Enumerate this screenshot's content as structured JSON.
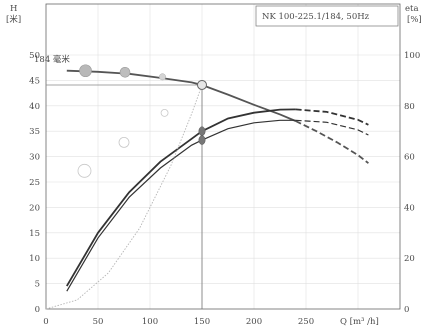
{
  "chart_data": {
    "type": "line",
    "title_box": "NK 100-225.1/184, 50Hz",
    "left_axis_label": [
      "H",
      "[米]"
    ],
    "right_axis_label": [
      "eta",
      "[%]"
    ],
    "xlabel": "Q [m³ /h]",
    "impeller_label": "184 毫米",
    "xlim": [
      0,
      300
    ],
    "ylim_head": [
      0,
      50
    ],
    "ylim_eta": [
      0,
      120
    ],
    "grid": true,
    "x_ticks": [
      "0",
      "50",
      "100",
      "150",
      "200",
      "250"
    ],
    "y_ticks_left": [
      "0",
      "5",
      "10",
      "15",
      "20",
      "25",
      "30",
      "35",
      "40",
      "45",
      "50"
    ],
    "y_ticks_right": [
      "0",
      "20",
      "40",
      "60",
      "80",
      "100"
    ],
    "operating_point": {
      "q": 150,
      "h": 44.1
    },
    "series": [
      {
        "role": "head_curve",
        "axis": "left",
        "points": [
          [
            20,
            46.9
          ],
          [
            50,
            46.7
          ],
          [
            80,
            46.3
          ],
          [
            110,
            45.5
          ],
          [
            140,
            44.6
          ],
          [
            150,
            44.1
          ],
          [
            175,
            42.2
          ],
          [
            200,
            40.2
          ],
          [
            225,
            38.3
          ],
          [
            240,
            37.0
          ]
        ],
        "dashed_points": [
          [
            240,
            37.0
          ],
          [
            260,
            35.0
          ],
          [
            280,
            32.8
          ],
          [
            300,
            30.3
          ],
          [
            310,
            28.7
          ]
        ]
      },
      {
        "role": "efficiency_curve",
        "axis": "right",
        "points": [
          [
            20,
            9
          ],
          [
            50,
            30
          ],
          [
            80,
            46
          ],
          [
            110,
            58
          ],
          [
            140,
            67
          ],
          [
            150,
            70
          ],
          [
            175,
            75
          ],
          [
            200,
            77.3
          ],
          [
            225,
            78.5
          ],
          [
            240,
            78.6
          ]
        ],
        "dashed_points": [
          [
            240,
            78.6
          ],
          [
            270,
            77.6
          ],
          [
            300,
            74.5
          ],
          [
            310,
            72.5
          ]
        ]
      },
      {
        "role": "efficiency_curve_lower",
        "axis": "right",
        "points": [
          [
            20,
            7
          ],
          [
            50,
            28
          ],
          [
            80,
            44
          ],
          [
            110,
            55.5
          ],
          [
            140,
            64.5
          ],
          [
            150,
            66.5
          ],
          [
            175,
            71
          ],
          [
            200,
            73.3
          ],
          [
            225,
            74.3
          ],
          [
            240,
            74.3
          ]
        ],
        "dashed_points": [
          [
            240,
            74.3
          ],
          [
            270,
            73.5
          ],
          [
            300,
            70.5
          ],
          [
            310,
            68.5
          ]
        ]
      },
      {
        "role": "system_curve",
        "axis": "left",
        "points": [
          [
            0,
            0
          ],
          [
            30,
            1.8
          ],
          [
            60,
            7.1
          ],
          [
            90,
            15.9
          ],
          [
            120,
            28.2
          ],
          [
            140,
            38.4
          ],
          [
            150,
            44.1
          ]
        ]
      }
    ],
    "markers": [
      {
        "q": 38,
        "h": 46.9,
        "size": "large"
      },
      {
        "q": 76,
        "h": 46.6,
        "size": "medium"
      },
      {
        "q": 112,
        "h": 45.7,
        "size": "small"
      },
      {
        "q": 150,
        "h": 44.1,
        "size": "open"
      },
      {
        "q": 114,
        "h": 38.6,
        "size": "faint-small"
      },
      {
        "q": 75,
        "h": 32.8,
        "size": "faint-medium"
      },
      {
        "q": 37,
        "h": 27.2,
        "size": "faint-large"
      }
    ],
    "colors": {
      "head_curve": "#555555",
      "efficiency_curve": "#333333",
      "system_curve": "#b5b5b5",
      "grid": "#e0e0e0",
      "frame": "#666666"
    }
  }
}
